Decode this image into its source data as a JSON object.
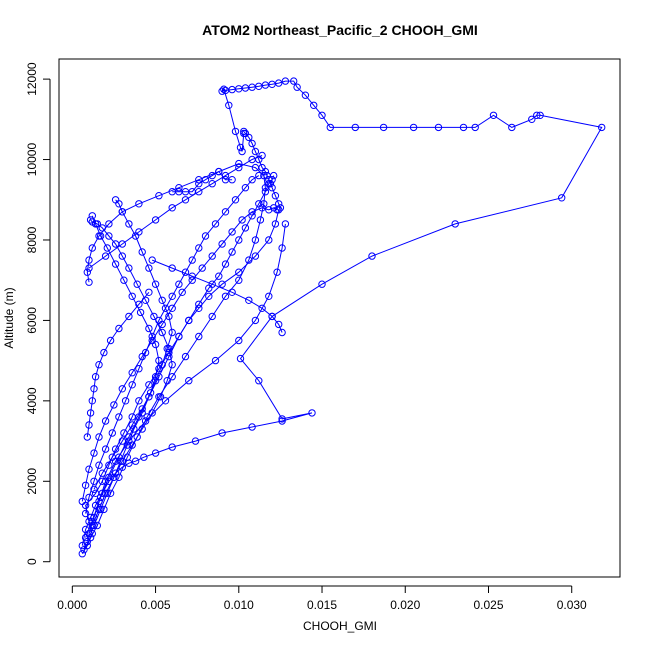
{
  "chart_data": {
    "type": "line",
    "title": "ATOM2 Northeast_Pacific_2 CHOOH_GMI",
    "xlabel": "CHOOH_GMI",
    "ylabel": "Altitude (m)",
    "xlim": [
      -0.0008,
      0.0329
    ],
    "ylim": [
      -380,
      12500
    ],
    "xticks": [
      0.0,
      0.005,
      0.01,
      0.015,
      0.02,
      0.025,
      0.03
    ],
    "xtick_labels": [
      "0.000",
      "0.005",
      "0.010",
      "0.015",
      "0.020",
      "0.025",
      "0.030"
    ],
    "yticks": [
      0,
      2000,
      4000,
      6000,
      8000,
      10000,
      12000
    ],
    "ytick_labels": [
      "0",
      "2000",
      "4000",
      "6000",
      "8000",
      "10000",
      "12000"
    ],
    "grid": false,
    "marker": "open-circle",
    "series_color": "#0000ff",
    "series": [
      {
        "x": [
          0.0006,
          0.0009,
          0.0012,
          0.001,
          0.0008,
          0.0014,
          0.0018,
          0.0022,
          0.0026,
          0.0031,
          0.0036,
          0.004,
          0.0046,
          0.0052,
          0.0058,
          0.0064,
          0.007,
          0.0076,
          0.0082,
          0.009,
          0.01,
          0.011,
          0.0118,
          0.0122,
          0.0124,
          0.0125,
          0.0124,
          0.0122,
          0.012,
          0.0119,
          0.0118,
          0.0117,
          0.0116,
          0.0114,
          0.0112,
          0.011,
          0.0108,
          0.0106,
          0.0104,
          0.0103
        ],
        "y": [
          200,
          400,
          700,
          1000,
          1400,
          1700,
          2000,
          2400,
          2800,
          3200,
          3600,
          4000,
          4400,
          4800,
          5200,
          5600,
          6000,
          6300,
          6600,
          6900,
          7200,
          7600,
          8000,
          8400,
          8750,
          8800,
          8900,
          9100,
          9300,
          9400,
          9500,
          9600,
          9700,
          9800,
          10000,
          10200,
          10400,
          10550,
          10650,
          10700
        ]
      },
      {
        "x": [
          0.0007,
          0.0011,
          0.0015,
          0.0019,
          0.0023,
          0.0028,
          0.0033,
          0.0039,
          0.0045,
          0.0052,
          0.006,
          0.0068,
          0.0076,
          0.0084,
          0.0092,
          0.01,
          0.0106,
          0.011,
          0.0113,
          0.0115,
          0.0116,
          0.0115,
          0.011,
          0.01,
          0.0088,
          0.0076,
          0.0064,
          0.0052,
          0.004,
          0.003,
          0.0022,
          0.0016,
          0.0012,
          0.001,
          0.0009,
          0.001
        ],
        "y": [
          300,
          600,
          900,
          1300,
          1700,
          2100,
          2600,
          3100,
          3600,
          4100,
          4600,
          5100,
          5600,
          6100,
          6600,
          7000,
          7500,
          8000,
          8500,
          8900,
          9300,
          9600,
          9800,
          9900,
          9700,
          9500,
          9300,
          9100,
          8900,
          8700,
          8400,
          8100,
          7800,
          7500,
          7200,
          6950
        ]
      },
      {
        "x": [
          0.0009,
          0.0013,
          0.0017,
          0.0021,
          0.0025,
          0.0029,
          0.0033,
          0.0037,
          0.0042,
          0.0046,
          0.005,
          0.0054,
          0.0057,
          0.006,
          0.0058,
          0.0054,
          0.005,
          0.0046,
          0.0042,
          0.0038,
          0.0034,
          0.003,
          0.0028,
          0.0026
        ],
        "y": [
          500,
          900,
          1300,
          1700,
          2100,
          2500,
          2900,
          3300,
          3700,
          4100,
          4500,
          4900,
          5300,
          5700,
          6100,
          6500,
          6900,
          7300,
          7700,
          8100,
          8400,
          8700,
          8900,
          9000
        ]
      },
      {
        "x": [
          0.001,
          0.0013,
          0.0017,
          0.0022,
          0.0028,
          0.0034,
          0.004,
          0.0046,
          0.0052,
          0.0058,
          0.0064,
          0.007,
          0.0076,
          0.0082,
          0.0088,
          0.0092,
          0.0096,
          0.01,
          0.0104,
          0.0108,
          0.0112,
          0.0116,
          0.0118,
          0.012,
          0.0121
        ],
        "y": [
          700,
          1100,
          1600,
          2100,
          2600,
          3100,
          3600,
          4100,
          4600,
          5100,
          5600,
          6000,
          6400,
          6800,
          7100,
          7400,
          7700,
          8000,
          8300,
          8600,
          8900,
          9200,
          9400,
          9500,
          9600
        ]
      },
      {
        "x": [
          0.0012,
          0.0016,
          0.002,
          0.0025,
          0.003,
          0.0036,
          0.0042,
          0.0048,
          0.0053,
          0.0057,
          0.006,
          0.0058,
          0.0054,
          0.0049,
          0.0044,
          0.0039,
          0.0034,
          0.003,
          0.0026,
          0.0022,
          0.0018,
          0.0015,
          0.0012,
          0.0011
        ],
        "y": [
          900,
          1300,
          1700,
          2100,
          2500,
          2900,
          3300,
          3700,
          4100,
          4500,
          4900,
          5300,
          5700,
          6100,
          6500,
          6900,
          7300,
          7600,
          7900,
          8100,
          8300,
          8400,
          8450,
          8500
        ]
      },
      {
        "x": [
          0.0008,
          0.001,
          0.0013,
          0.0016,
          0.002,
          0.0024,
          0.0028,
          0.0032,
          0.0036,
          0.004,
          0.0044,
          0.0048,
          0.0052,
          0.0056,
          0.006,
          0.0064,
          0.0068,
          0.0072,
          0.0076,
          0.008,
          0.0086,
          0.0092,
          0.0098,
          0.0104,
          0.0108,
          0.0112
        ],
        "y": [
          1200,
          1600,
          2000,
          2400,
          2800,
          3200,
          3600,
          4000,
          4400,
          4800,
          5200,
          5600,
          6000,
          6300,
          6600,
          6900,
          7200,
          7500,
          7800,
          8100,
          8400,
          8700,
          9000,
          9300,
          9500,
          9600
        ]
      },
      {
        "x": [
          0.0013,
          0.0018,
          0.0024,
          0.003,
          0.0036,
          0.0042,
          0.0047,
          0.005,
          0.0052,
          0.005,
          0.0046,
          0.0041,
          0.0036,
          0.0031,
          0.0026,
          0.0021,
          0.0017,
          0.0014,
          0.0012
        ],
        "y": [
          1800,
          2200,
          2600,
          3000,
          3400,
          3800,
          4200,
          4600,
          5000,
          5400,
          5800,
          6200,
          6600,
          7000,
          7400,
          7800,
          8100,
          8400,
          8600
        ]
      },
      {
        "x": [
          0.0006,
          0.0008,
          0.001,
          0.0013,
          0.0016,
          0.002,
          0.0025,
          0.003,
          0.0036,
          0.0042,
          0.0048,
          0.0054,
          0.006,
          0.0066,
          0.0072,
          0.0078,
          0.0084,
          0.009,
          0.0096,
          0.0102,
          0.0108,
          0.0114,
          0.0118,
          0.0121,
          0.0123
        ],
        "y": [
          1500,
          1900,
          2300,
          2700,
          3100,
          3500,
          3900,
          4300,
          4700,
          5100,
          5500,
          5900,
          6300,
          6700,
          7000,
          7300,
          7600,
          7900,
          8200,
          8500,
          8700,
          8800,
          8750,
          8800,
          8750
        ]
      },
      {
        "x": [
          0.0048,
          0.006,
          0.0072,
          0.0084,
          0.0096,
          0.0106,
          0.0114,
          0.012,
          0.0124,
          0.0126
        ],
        "y": [
          7500,
          7300,
          7100,
          6900,
          6700,
          6500,
          6300,
          6100,
          5900,
          5700
        ]
      },
      {
        "x": [
          0.001,
          0.002,
          0.003,
          0.004,
          0.005,
          0.006,
          0.0068,
          0.0076,
          0.0084,
          0.0092,
          0.01,
          0.0108,
          0.0114
        ],
        "y": [
          7300,
          7600,
          7900,
          8200,
          8500,
          8800,
          9000,
          9200,
          9400,
          9600,
          9800,
          10000,
          10100
        ]
      },
      {
        "x": [
          0.006,
          0.0064,
          0.0068,
          0.0072,
          0.0076,
          0.008,
          0.0084,
          0.0088,
          0.0092,
          0.0096
        ],
        "y": [
          9200,
          9200,
          9200,
          9200,
          9400,
          9500,
          9600,
          9700,
          9500,
          9500
        ]
      },
      {
        "x": [
          0.0008,
          0.0012,
          0.0016,
          0.002,
          0.0026,
          0.0034,
          0.0044,
          0.0056,
          0.007,
          0.0086,
          0.01,
          0.011,
          0.0118,
          0.0123,
          0.0126,
          0.0128
        ],
        "y": [
          600,
          1000,
          1500,
          2000,
          2500,
          3000,
          3500,
          4000,
          4500,
          5000,
          5500,
          6000,
          6600,
          7200,
          7800,
          8400
        ]
      },
      {
        "x": [
          0.0009,
          0.001,
          0.0011,
          0.0012,
          0.0013,
          0.0014,
          0.0016,
          0.0019,
          0.0023,
          0.0028,
          0.0034,
          0.004,
          0.0046
        ],
        "y": [
          3100,
          3400,
          3700,
          4000,
          4300,
          4600,
          4900,
          5200,
          5500,
          5800,
          6100,
          6400,
          6700
        ]
      },
      {
        "x": [
          0.0006,
          0.0008,
          0.0011,
          0.0014,
          0.0018,
          0.0022,
          0.0026,
          0.003,
          0.0034,
          0.0038,
          0.0043,
          0.005,
          0.006,
          0.0074,
          0.009,
          0.0108,
          0.0126,
          0.0144,
          0.0126,
          0.0112,
          0.0101,
          0.012,
          0.015,
          0.018,
          0.023,
          0.0294,
          0.0318,
          0.0281,
          0.0279,
          0.0276,
          0.0264,
          0.0253,
          0.0242,
          0.0235,
          0.022,
          0.0205,
          0.0187,
          0.017,
          0.0155,
          0.015,
          0.0145,
          0.014,
          0.0135,
          0.0133,
          0.0128,
          0.0124,
          0.012,
          0.0116,
          0.0112,
          0.0108,
          0.0104,
          0.01,
          0.0096,
          0.0092,
          0.009,
          0.0091,
          0.0094,
          0.0098,
          0.0101,
          0.0102,
          0.0103
        ],
        "y": [
          400,
          800,
          1100,
          1400,
          1700,
          2000,
          2200,
          2350,
          2450,
          2500,
          2600,
          2700,
          2850,
          3000,
          3200,
          3350,
          3500,
          3700,
          3550,
          4500,
          5050,
          6100,
          6900,
          7600,
          8400,
          9050,
          10800,
          11100,
          11100,
          11000,
          10800,
          11100,
          10800,
          10800,
          10800,
          10800,
          10800,
          10800,
          10800,
          11100,
          11350,
          11600,
          11800,
          11950,
          11950,
          11900,
          11870,
          11850,
          11820,
          11800,
          11780,
          11760,
          11740,
          11720,
          11700,
          11750,
          11350,
          10700,
          10300,
          10200,
          10650
        ]
      }
    ]
  }
}
